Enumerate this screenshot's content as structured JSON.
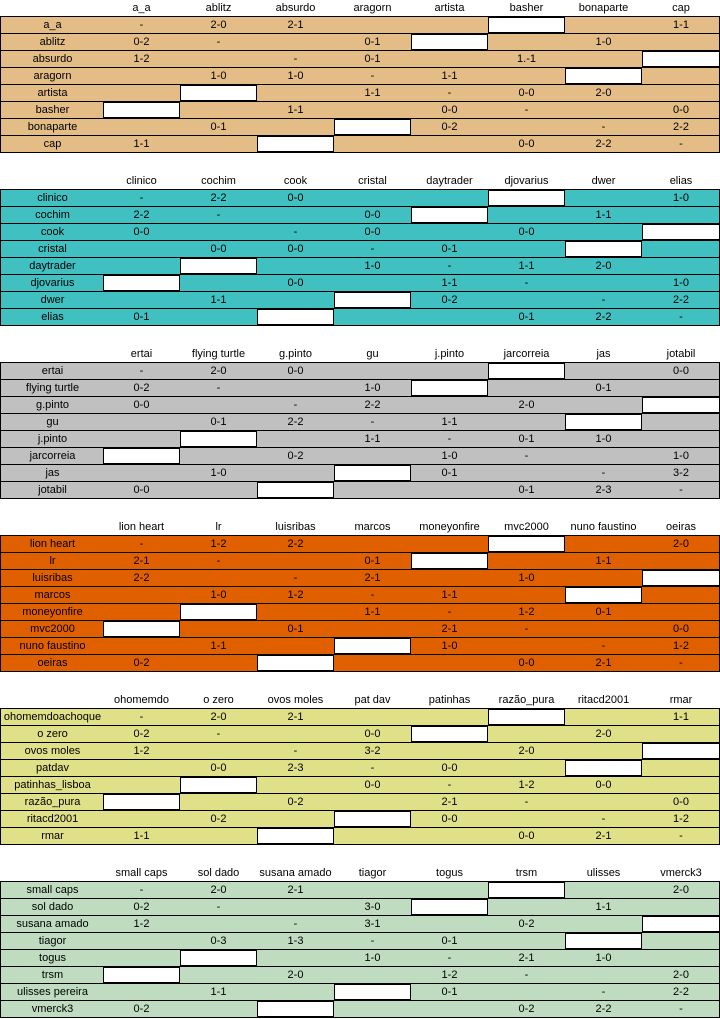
{
  "groups": [
    {
      "color": "#e3bd85",
      "teams": [
        "a_a",
        "ablitz",
        "absurdo",
        "aragorn",
        "artista",
        "basher",
        "bonaparte",
        "cap"
      ],
      "rows": [
        {
          "name": "a_a",
          "cells": [
            "-",
            "2-0",
            "2-1",
            "",
            "",
            "",
            "",
            " 1-1"
          ]
        },
        {
          "name": "ablitz",
          "cells": [
            "0-2",
            "-",
            "",
            "0-1",
            "",
            "",
            "1-0",
            ""
          ]
        },
        {
          "name": "absurdo",
          "cells": [
            "1-2",
            "",
            "-",
            "0-1",
            "",
            "1.-1",
            "",
            ""
          ]
        },
        {
          "name": "aragorn",
          "cells": [
            "",
            "1-0",
            "1-0",
            "-",
            "1-1",
            "",
            "",
            ""
          ]
        },
        {
          "name": "artista",
          "cells": [
            "",
            "",
            "",
            "1-1",
            "-",
            "0-0",
            "2-0",
            ""
          ]
        },
        {
          "name": "basher",
          "cells": [
            "",
            "",
            "1-1",
            "",
            "0-0",
            "-",
            "",
            "0-0"
          ]
        },
        {
          "name": "bonaparte",
          "cells": [
            "",
            "0-1",
            "",
            "",
            "0-2",
            "",
            "-",
            "2-2"
          ]
        },
        {
          "name": "cap",
          "cells": [
            "1-1",
            "",
            "",
            "",
            "",
            "0-0",
            "2-2",
            "-"
          ]
        }
      ]
    },
    {
      "color": "#40c0c0",
      "teams": [
        "clinico",
        "cochim",
        "cook",
        "cristal",
        "daytrader",
        "djovarius",
        "dwer",
        "elias"
      ],
      "rows": [
        {
          "name": "clinico",
          "cells": [
            "-",
            "2-2",
            "0-0",
            "",
            "",
            "",
            "",
            "1-0"
          ]
        },
        {
          "name": "cochim",
          "cells": [
            "2-2",
            "-",
            "",
            "0-0",
            "",
            "",
            "1-1",
            ""
          ]
        },
        {
          "name": "cook",
          "cells": [
            "0-0",
            "",
            "-",
            "0-0",
            "",
            "0-0",
            "",
            ""
          ]
        },
        {
          "name": "cristal",
          "cells": [
            "",
            "0-0",
            "0-0",
            "-",
            "0-1",
            "",
            "",
            ""
          ]
        },
        {
          "name": "daytrader",
          "cells": [
            "",
            "",
            "",
            "1-0",
            "-",
            "1-1",
            "2-0",
            ""
          ]
        },
        {
          "name": "djovarius",
          "cells": [
            "",
            "",
            "0-0",
            "",
            "1-1",
            "-",
            "",
            "1-0"
          ]
        },
        {
          "name": "dwer",
          "cells": [
            "",
            "1-1",
            "",
            "",
            "0-2",
            "",
            "-",
            "2-2"
          ]
        },
        {
          "name": "elias",
          "cells": [
            "0-1",
            "",
            "",
            "",
            "",
            "0-1",
            "2-2",
            "-"
          ]
        }
      ]
    },
    {
      "color": "#c0c0c0",
      "teams": [
        "ertai",
        "flying turtle",
        "g.pinto",
        "gu",
        "j.pinto",
        "jarcorreia",
        "jas",
        "jotabil"
      ],
      "rows": [
        {
          "name": "ertai",
          "cells": [
            "-",
            "2-0",
            "0-0",
            "",
            "",
            "",
            "",
            "0-0"
          ]
        },
        {
          "name": "flying turtle",
          "cells": [
            "0-2",
            "-",
            "",
            "1-0",
            "",
            "",
            "0-1",
            ""
          ]
        },
        {
          "name": "g.pinto",
          "cells": [
            "0-0",
            "",
            "-",
            "2-2",
            "",
            "2-0",
            "",
            ""
          ]
        },
        {
          "name": "gu",
          "cells": [
            "",
            "0-1",
            "2-2",
            "-",
            "1-1",
            "",
            "",
            ""
          ]
        },
        {
          "name": "j.pinto",
          "cells": [
            "",
            "",
            "",
            "1-1",
            "-",
            "0-1",
            "1-0",
            ""
          ]
        },
        {
          "name": "jarcorreia",
          "cells": [
            "",
            "",
            "0-2",
            "",
            "1-0",
            "-",
            "",
            "1-0"
          ]
        },
        {
          "name": "jas",
          "cells": [
            "",
            "1-0",
            "",
            "",
            "0-1",
            "",
            "-",
            "3-2"
          ]
        },
        {
          "name": "jotabil",
          "cells": [
            "0-0",
            "",
            "",
            "",
            "",
            "0-1",
            "2-3",
            "-"
          ]
        }
      ]
    },
    {
      "color": "#e06000",
      "teams": [
        "lion heart",
        "lr",
        "luisribas",
        "marcos",
        "moneyonfire",
        "mvc2000",
        "nuno faustino",
        "oeiras"
      ],
      "rows": [
        {
          "name": "lion heart",
          "cells": [
            "-",
            "1-2",
            "2-2",
            "",
            "",
            "",
            "",
            "2-0"
          ]
        },
        {
          "name": "lr",
          "cells": [
            "2-1",
            "-",
            "",
            "0-1",
            "",
            "",
            "1-1",
            ""
          ]
        },
        {
          "name": "luisribas",
          "cells": [
            "2-2",
            "",
            "-",
            "2-1",
            "",
            "1-0",
            "",
            ""
          ]
        },
        {
          "name": "marcos",
          "cells": [
            "",
            "1-0",
            "1-2",
            "-",
            "1-1",
            "",
            "",
            ""
          ]
        },
        {
          "name": "moneyonfire",
          "cells": [
            "",
            "",
            "",
            "1-1",
            "-",
            "1-2",
            "0-1",
            ""
          ]
        },
        {
          "name": "mvc2000",
          "cells": [
            "",
            "",
            "0-1",
            "",
            "2-1",
            "-",
            "",
            "0-0"
          ]
        },
        {
          "name": "nuno faustino",
          "cells": [
            "",
            "1-1",
            "",
            "",
            "1-0",
            "",
            "-",
            "1-2"
          ]
        },
        {
          "name": "oeiras",
          "cells": [
            "0-2",
            "",
            "",
            "",
            "",
            "0-0",
            "2-1",
            "-"
          ]
        }
      ]
    },
    {
      "color": "#e0e088",
      "teams": [
        "ohomemdo",
        "o zero",
        "ovos moles",
        "pat dav",
        "patinhas",
        "razão_pura",
        "ritacd2001",
        "rmar"
      ],
      "rows": [
        {
          "name": "ohomemdoachoque",
          "cells": [
            "-",
            "2-0",
            "2-1",
            "",
            "",
            "",
            "",
            "1-1"
          ]
        },
        {
          "name": "o zero",
          "cells": [
            "0-2",
            "-",
            "",
            "0-0",
            "",
            "",
            "2-0",
            ""
          ]
        },
        {
          "name": "ovos moles",
          "cells": [
            "1-2",
            "",
            "-",
            "3-2",
            "",
            "2-0",
            "",
            ""
          ]
        },
        {
          "name": "patdav",
          "cells": [
            "",
            "0-0",
            "2-3",
            "-",
            "0-0",
            "",
            "",
            ""
          ]
        },
        {
          "name": "patinhas_lisboa",
          "cells": [
            "",
            "",
            "",
            "0-0",
            "-",
            "1-2",
            "0-0",
            ""
          ]
        },
        {
          "name": "razão_pura",
          "cells": [
            "",
            "",
            "0-2",
            "",
            "2-1",
            "-",
            "",
            "0-0"
          ]
        },
        {
          "name": "ritacd2001",
          "cells": [
            "",
            "0-2",
            "",
            "",
            "0-0",
            "",
            "-",
            "1-2"
          ]
        },
        {
          "name": "rmar",
          "cells": [
            "1-1",
            "",
            "",
            "",
            "",
            "0-0",
            "2-1",
            "-"
          ]
        }
      ]
    },
    {
      "color": "#c0dcc0",
      "teams": [
        "small caps",
        "sol dado",
        "susana amado",
        "tiagor",
        "togus",
        "trsm",
        "ulisses",
        "vmerck3"
      ],
      "rows": [
        {
          "name": "small caps",
          "cells": [
            "-",
            "2-0",
            "2-1",
            "",
            "",
            "",
            "",
            "2-0"
          ]
        },
        {
          "name": "sol dado",
          "cells": [
            "0-2",
            "-",
            "",
            "3-0",
            "",
            "",
            "1-1",
            ""
          ]
        },
        {
          "name": "susana amado",
          "cells": [
            "1-2",
            "",
            "-",
            "3-1",
            "",
            "0-2",
            "",
            ""
          ]
        },
        {
          "name": "tiagor",
          "cells": [
            "",
            "0-3",
            "1-3",
            "-",
            "0-1",
            "",
            "",
            ""
          ]
        },
        {
          "name": "togus",
          "cells": [
            "",
            "",
            "",
            "1-0",
            "-",
            "2-1",
            "1-0",
            ""
          ]
        },
        {
          "name": "trsm",
          "cells": [
            "",
            "",
            "2-0",
            "",
            "1-2",
            "-",
            "",
            "2-0"
          ]
        },
        {
          "name": "ulisses pereira",
          "cells": [
            "",
            "1-1",
            "",
            "",
            "0-1",
            "",
            "-",
            "2-2"
          ]
        },
        {
          "name": "vmerck3",
          "cells": [
            "0-2",
            "",
            "",
            "",
            "",
            "0-2",
            "2-2",
            "-"
          ]
        }
      ]
    }
  ]
}
